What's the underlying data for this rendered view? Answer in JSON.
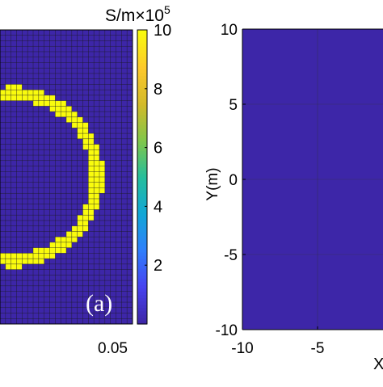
{
  "colors": {
    "low": "#3d26a8",
    "high": "#f9fb0e",
    "cell_border": "#1a1a1a",
    "colormap": [
      "#3e26a8",
      "#4743f0",
      "#2f7ffb",
      "#11a7d6",
      "#25be9c",
      "#80c64a",
      "#d2ba2a",
      "#fdc82b",
      "#f9fb0e"
    ]
  },
  "chart_data": [
    {
      "type": "heatmap",
      "panel_label": "(a)",
      "description_values": "binary conductivity map: annular ring of 10e5 S/m inside background near 0",
      "xlim_visible": [
        -0.05,
        0.05
      ],
      "x_tick_labels": [
        "0.05"
      ],
      "ring": {
        "center": [
          -0.04,
          0.0
        ],
        "outer_radius": 0.068,
        "inner_radius": 0.058,
        "value": 10,
        "background": 0
      },
      "colorbar": {
        "unit_label": "S/m",
        "multiplier_label": "×10",
        "exponent_label": "5",
        "range": [
          0,
          10
        ],
        "tick_labels": [
          "2",
          "4",
          "6",
          "8",
          "10"
        ]
      }
    },
    {
      "type": "heatmap",
      "fill_value": 0,
      "ylabel": "Y(m)",
      "xlabel": "X",
      "xlim": [
        -10,
        10
      ],
      "ylim": [
        -10,
        10
      ],
      "x_tick_labels": [
        "-10",
        "-5"
      ],
      "y_tick_labels": [
        "10",
        "5",
        "0",
        "-5",
        "-10"
      ],
      "grid": true
    }
  ]
}
